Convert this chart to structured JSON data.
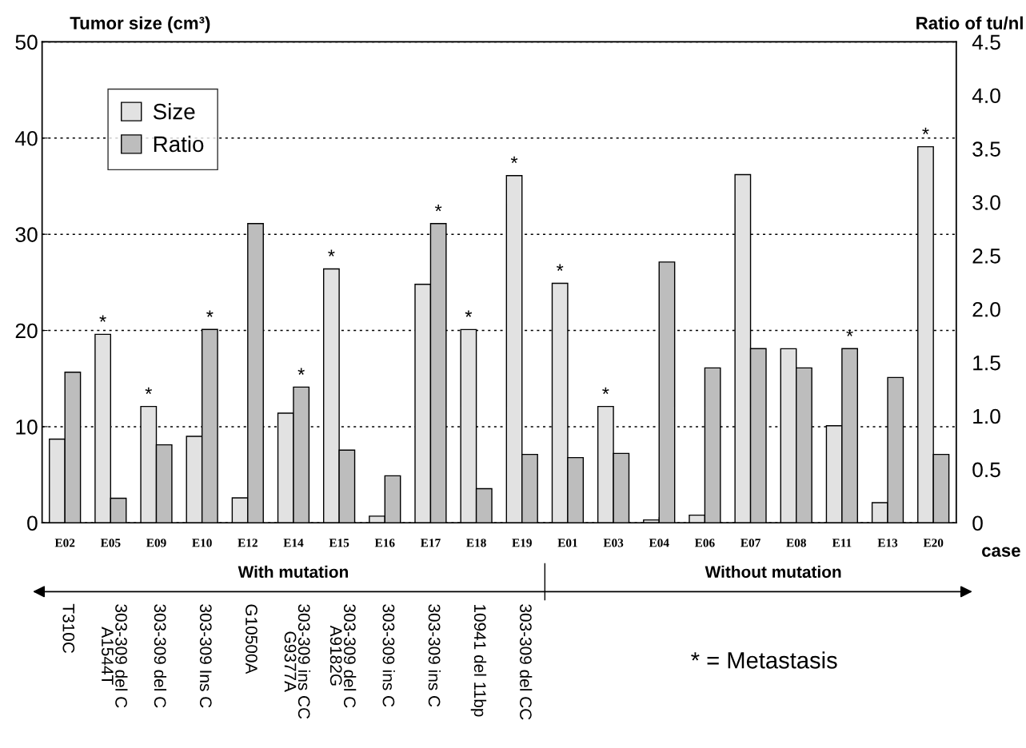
{
  "chart_data": {
    "type": "bar",
    "categories": [
      "E02",
      "E05",
      "E09",
      "E10",
      "E12",
      "E14",
      "E15",
      "E16",
      "E17",
      "E18",
      "E19",
      "E01",
      "E03",
      "E04",
      "E06",
      "E07",
      "E08",
      "E11",
      "E13",
      "E20"
    ],
    "series": [
      {
        "name": "Size",
        "color": "#e2e2e2",
        "values": [
          8.7,
          19.6,
          12.1,
          9.0,
          2.6,
          11.4,
          26.4,
          0.7,
          24.8,
          20.1,
          36.1,
          24.9,
          12.1,
          0.3,
          0.8,
          36.2,
          18.1,
          10.1,
          2.1,
          39.1
        ]
      },
      {
        "name": "Ratio",
        "color": "#bdbdbd",
        "axis": "y2",
        "values": [
          1.41,
          0.23,
          0.73,
          1.81,
          2.8,
          1.27,
          0.68,
          0.44,
          2.8,
          0.32,
          0.64,
          0.61,
          0.65,
          2.44,
          1.45,
          1.63,
          1.45,
          1.63,
          1.36,
          0.64
        ]
      }
    ],
    "ylabel": "Tumor size (cm³)",
    "y2label": "Ratio of tu/nl",
    "xlabel": "case",
    "ylim": [
      0,
      50
    ],
    "yticks": [
      0,
      10,
      20,
      30,
      40,
      50
    ],
    "y2lim": [
      0,
      4.5
    ],
    "y2ticks": [
      {
        "value": 0,
        "label": "0"
      },
      {
        "value": 0.5,
        "label": "0.5"
      },
      {
        "value": 1,
        "label": "1.0"
      },
      {
        "value": 1.5,
        "label": "1.5"
      },
      {
        "value": 2,
        "label": "2.0"
      },
      {
        "value": 2.5,
        "label": "2.5"
      },
      {
        "value": 3,
        "label": "3.0"
      },
      {
        "value": 3.5,
        "label": "3.5"
      },
      {
        "value": 4,
        "label": "4.0"
      },
      {
        "value": 4.5,
        "label": "4.5"
      }
    ],
    "grid": "y",
    "legend": "top left",
    "annotations": [
      "With mutation",
      "Without mutation",
      "T310C",
      "303-309 del C\nA1544T",
      "303-309 del C",
      "303-309 Ins C",
      "G10500A",
      "303-309 ins CC\nG9377A",
      "303-309 del C\nA9182G",
      "303-309 ins C",
      "303-309 ins C",
      "10941 del 11bp",
      "303-309 del CC",
      "* = Metastasis",
      {
        "text": "*",
        "x": "E05",
        "y": 19.6
      },
      {
        "text": "*",
        "x": "E09",
        "y": 12.1
      },
      {
        "text": "*",
        "x": "E10",
        "y": 20.1
      },
      {
        "text": "*",
        "x": "E14",
        "y": 14.1
      },
      {
        "text": "*",
        "x": "E15",
        "y": 26.4
      },
      {
        "text": "*",
        "x": "E17",
        "y": 31.1
      },
      {
        "text": "*",
        "x": "E18",
        "y": 20.1
      },
      {
        "text": "*",
        "x": "E19",
        "y": 36.1
      },
      {
        "text": "*",
        "x": "E01",
        "y": 24.9
      },
      {
        "text": "*",
        "x": "E03",
        "y": 12.1
      },
      {
        "text": "*",
        "x": "E11",
        "y": 18.1
      },
      {
        "text": "*",
        "x": "E20",
        "y": 39.1
      }
    ]
  }
}
